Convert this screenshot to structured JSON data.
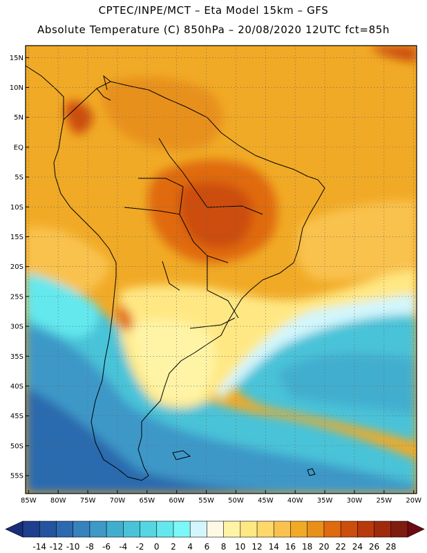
{
  "header": {
    "line1": "CPTEC/INPE/MCT –  Eta Model 15km – GFS",
    "line2": "Absolute Temperature (C) 850hPa – 20/08/2020 12UTC fct=85h"
  },
  "map": {
    "lat_labels": [
      "15N",
      "10N",
      "5N",
      "EQ",
      "5S",
      "10S",
      "15S",
      "20S",
      "25S",
      "30S",
      "35S",
      "40S",
      "45S",
      "50S",
      "55S"
    ],
    "lon_labels": [
      "85W",
      "80W",
      "75W",
      "70W",
      "65W",
      "60W",
      "55W",
      "50W",
      "45W",
      "40W",
      "35W",
      "30W",
      "25W",
      "20W"
    ],
    "lat_values": [
      15,
      10,
      5,
      0,
      -5,
      -10,
      -15,
      -20,
      -25,
      -30,
      -35,
      -40,
      -45,
      -50,
      -55
    ],
    "lon_values": [
      -85,
      -80,
      -75,
      -70,
      -65,
      -60,
      -55,
      -50,
      -45,
      -40,
      -35,
      -30,
      -25,
      -20
    ],
    "extent": {
      "lon_min": -85.5,
      "lon_max": -19.5,
      "lat_min": -58,
      "lat_max": 17
    }
  },
  "colorbar": {
    "labels": [
      "-14",
      "-12",
      "-10",
      "-8",
      "-6",
      "-4",
      "-2",
      "0",
      "2",
      "4",
      "6",
      "8",
      "10",
      "12",
      "14",
      "16",
      "18",
      "20",
      "22",
      "24",
      "26",
      "28"
    ],
    "under_color": "#1a2e78",
    "over_color": "#6e0a14",
    "colors": [
      "#1d3f8e",
      "#24549e",
      "#2b6aae",
      "#3682bd",
      "#3e98c8",
      "#42aecf",
      "#4ac3d8",
      "#55d6e2",
      "#64e8ee",
      "#7cf8f8",
      "#d2f6fc",
      "#fff8e4",
      "#fff4a6",
      "#ffe884",
      "#ffd86a",
      "#f9c24e",
      "#f1aa26",
      "#e8901a",
      "#e06a0e",
      "#cc4e0c",
      "#b83a0c",
      "#a02a0c",
      "#7e1c10"
    ]
  }
}
